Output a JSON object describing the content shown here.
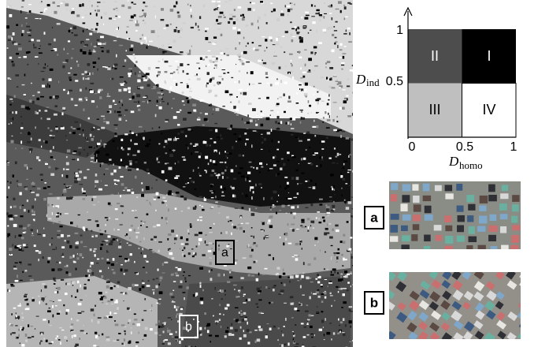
{
  "map": {
    "labels": [
      "a",
      "b"
    ]
  },
  "legend": {
    "quadrants": [
      "I",
      "II",
      "III",
      "IV"
    ],
    "y_axis": {
      "symbol": "D",
      "subscript": "ind",
      "ticks": [
        0.5,
        1
      ]
    },
    "x_axis": {
      "symbol": "D",
      "subscript": "homo",
      "ticks": [
        0,
        0.5,
        1
      ]
    }
  },
  "photos": [
    {
      "label": "a"
    },
    {
      "label": "b"
    }
  ]
}
